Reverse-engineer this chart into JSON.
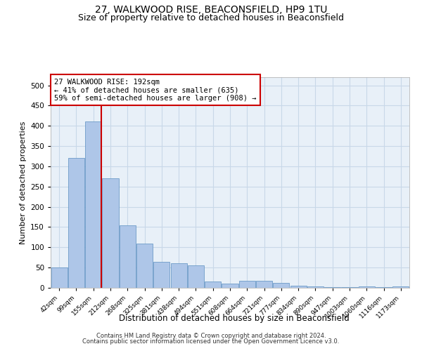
{
  "title1": "27, WALKWOOD RISE, BEACONSFIELD, HP9 1TU",
  "title2": "Size of property relative to detached houses in Beaconsfield",
  "xlabel": "Distribution of detached houses by size in Beaconsfield",
  "ylabel": "Number of detached properties",
  "footer1": "Contains HM Land Registry data © Crown copyright and database right 2024.",
  "footer2": "Contains public sector information licensed under the Open Government Licence v3.0.",
  "bin_labels": [
    "42sqm",
    "99sqm",
    "155sqm",
    "212sqm",
    "268sqm",
    "325sqm",
    "381sqm",
    "438sqm",
    "494sqm",
    "551sqm",
    "608sqm",
    "664sqm",
    "721sqm",
    "777sqm",
    "834sqm",
    "890sqm",
    "947sqm",
    "1003sqm",
    "1060sqm",
    "1116sqm",
    "1173sqm"
  ],
  "bar_heights": [
    50,
    320,
    410,
    270,
    155,
    110,
    65,
    60,
    55,
    15,
    10,
    18,
    18,
    12,
    5,
    3,
    1,
    1,
    4,
    1,
    3
  ],
  "bar_color": "#aec6e8",
  "bar_edge_color": "#5a8fc0",
  "annotation_text": "27 WALKWOOD RISE: 192sqm\n← 41% of detached houses are smaller (635)\n59% of semi-detached houses are larger (908) →",
  "vline_color": "#cc0000",
  "annotation_box_color": "#ffffff",
  "annotation_box_edge": "#cc0000",
  "ylim": [
    0,
    520
  ],
  "yticks": [
    0,
    50,
    100,
    150,
    200,
    250,
    300,
    350,
    400,
    450,
    500
  ],
  "background_color": "#e8f0f8",
  "grid_color": "#c8d8e8",
  "title1_fontsize": 10,
  "title2_fontsize": 9
}
